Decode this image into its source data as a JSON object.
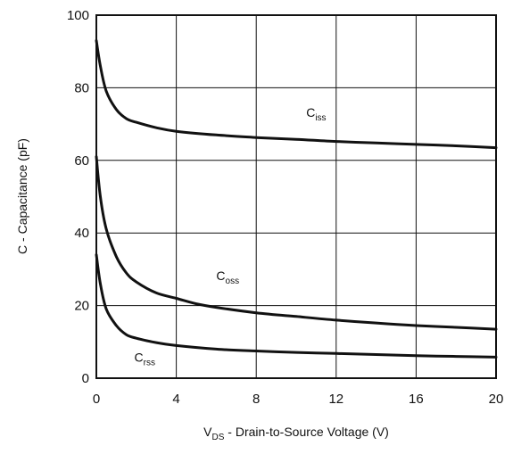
{
  "chart_data": {
    "type": "line",
    "xlabel": {
      "prefix": "V",
      "sub": "DS",
      "suffix": " - Drain-to-Source Voltage (V)"
    },
    "ylabel": "C - Capacitance (pF)",
    "xlim": [
      0,
      20
    ],
    "ylim": [
      0,
      100
    ],
    "xticks": [
      0,
      4,
      8,
      12,
      16,
      20
    ],
    "yticks": [
      0,
      20,
      40,
      60,
      80,
      100
    ],
    "grid": true,
    "colors": {
      "line": "#111111",
      "grid": "#111111",
      "background": "#ffffff"
    },
    "series": [
      {
        "name": "Ciss",
        "name_main": "C",
        "name_sub": "iss",
        "label_at": [
          10.5,
          72
        ],
        "x": [
          0,
          0.2,
          0.5,
          1.0,
          1.5,
          2,
          3,
          4,
          6,
          8,
          10,
          12,
          14,
          16,
          18,
          20
        ],
        "y": [
          93,
          86,
          79,
          74,
          71.5,
          70.5,
          69,
          68,
          67,
          66.3,
          65.8,
          65.2,
          64.8,
          64.4,
          64,
          63.5
        ]
      },
      {
        "name": "Coss",
        "name_main": "C",
        "name_sub": "oss",
        "label_at": [
          6.0,
          27
        ],
        "x": [
          0,
          0.2,
          0.5,
          1.0,
          1.5,
          2,
          3,
          4,
          5,
          6,
          8,
          10,
          12,
          14,
          16,
          18,
          20
        ],
        "y": [
          61,
          50,
          41,
          33.5,
          29,
          26.5,
          23.5,
          22,
          20.5,
          19.5,
          18,
          17,
          16,
          15.2,
          14.5,
          14,
          13.5
        ]
      },
      {
        "name": "Crss",
        "name_main": "C",
        "name_sub": "rss",
        "label_at": [
          1.9,
          4.5
        ],
        "x": [
          0,
          0.2,
          0.5,
          1.0,
          1.5,
          2,
          3,
          4,
          6,
          8,
          10,
          12,
          14,
          16,
          18,
          20
        ],
        "y": [
          34,
          26,
          19,
          14.5,
          12,
          11,
          9.8,
          9,
          8,
          7.5,
          7.1,
          6.8,
          6.5,
          6.2,
          6,
          5.8
        ]
      }
    ]
  }
}
